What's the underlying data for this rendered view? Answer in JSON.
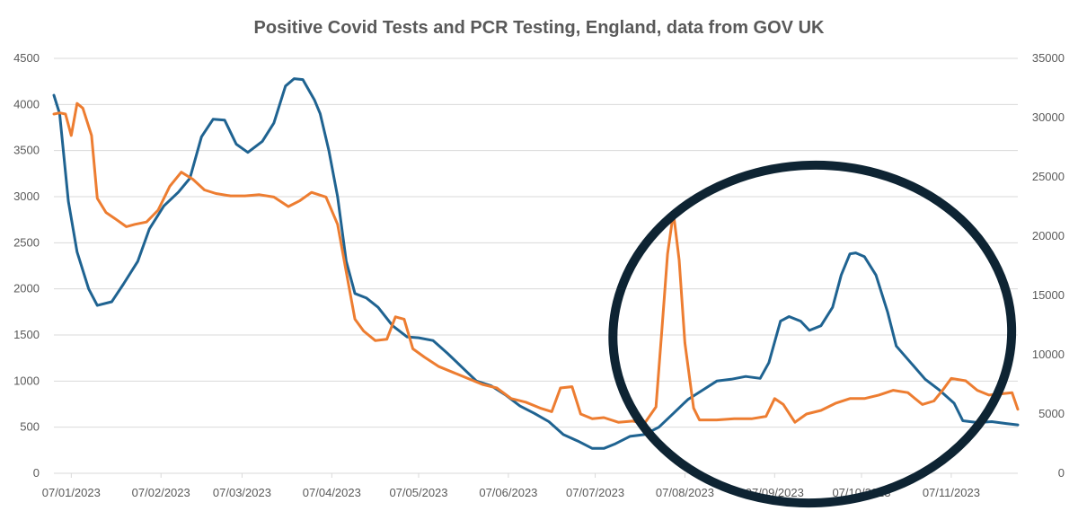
{
  "chart_data": {
    "type": "line",
    "title": "Positive Covid Tests and PCR Testing, England, data from GOV UK",
    "xlabel": "",
    "ylabel": "",
    "x_tick_labels": [
      "07/01/2023",
      "07/02/2023",
      "07/03/2023",
      "07/04/2023",
      "07/05/2023",
      "07/06/2023",
      "07/07/2023",
      "07/08/2023",
      "07/09/2023",
      "07/10/2023",
      "07/11/2023"
    ],
    "y_left": {
      "min": 0,
      "max": 4500,
      "ticks": [
        0,
        500,
        1000,
        1500,
        2000,
        2500,
        3000,
        3500,
        4000,
        4500
      ]
    },
    "y_right": {
      "min": 0,
      "max": 35000,
      "ticks": [
        0,
        5000,
        10000,
        15000,
        20000,
        25000,
        30000,
        35000
      ]
    },
    "grid": true,
    "legend": "none",
    "colors": {
      "positive_tests": "#1f6391",
      "pcr_tests": "#ed7d31",
      "annotation_circle": "#0e2433",
      "grid": "#d9d9d9",
      "text": "#595959"
    },
    "series": [
      {
        "axis": "left",
        "color": "#1f6391",
        "points": [
          [
            "2023-01-01",
            4100
          ],
          [
            "2023-01-03",
            3900
          ],
          [
            "2023-01-06",
            2950
          ],
          [
            "2023-01-09",
            2400
          ],
          [
            "2023-01-13",
            2000
          ],
          [
            "2023-01-16",
            1820
          ],
          [
            "2023-01-21",
            1860
          ],
          [
            "2023-01-25",
            2050
          ],
          [
            "2023-01-30",
            2300
          ],
          [
            "2023-02-03",
            2650
          ],
          [
            "2023-02-08",
            2900
          ],
          [
            "2023-02-13",
            3050
          ],
          [
            "2023-02-17",
            3200
          ],
          [
            "2023-02-21",
            3650
          ],
          [
            "2023-02-25",
            3840
          ],
          [
            "2023-03-01",
            3830
          ],
          [
            "2023-03-05",
            3570
          ],
          [
            "2023-03-09",
            3480
          ],
          [
            "2023-03-14",
            3600
          ],
          [
            "2023-03-18",
            3800
          ],
          [
            "2023-03-22",
            4200
          ],
          [
            "2023-03-25",
            4280
          ],
          [
            "2023-03-28",
            4270
          ],
          [
            "2023-04-01",
            4050
          ],
          [
            "2023-04-03",
            3900
          ],
          [
            "2023-04-06",
            3500
          ],
          [
            "2023-04-09",
            3000
          ],
          [
            "2023-04-12",
            2300
          ],
          [
            "2023-04-15",
            1950
          ],
          [
            "2023-04-19",
            1900
          ],
          [
            "2023-04-23",
            1800
          ],
          [
            "2023-04-28",
            1600
          ],
          [
            "2023-05-03",
            1480
          ],
          [
            "2023-05-07",
            1470
          ],
          [
            "2023-05-12",
            1440
          ],
          [
            "2023-05-17",
            1300
          ],
          [
            "2023-05-22",
            1150
          ],
          [
            "2023-05-27",
            1000
          ],
          [
            "2023-06-01",
            950
          ],
          [
            "2023-06-06",
            850
          ],
          [
            "2023-06-11",
            730
          ],
          [
            "2023-06-16",
            650
          ],
          [
            "2023-06-21",
            560
          ],
          [
            "2023-06-26",
            420
          ],
          [
            "2023-07-01",
            350
          ],
          [
            "2023-07-06",
            270
          ],
          [
            "2023-07-10",
            270
          ],
          [
            "2023-07-14",
            320
          ],
          [
            "2023-07-19",
            400
          ],
          [
            "2023-07-24",
            420
          ],
          [
            "2023-07-29",
            500
          ],
          [
            "2023-08-03",
            650
          ],
          [
            "2023-08-08",
            800
          ],
          [
            "2023-08-13",
            900
          ],
          [
            "2023-08-18",
            1000
          ],
          [
            "2023-08-23",
            1020
          ],
          [
            "2023-08-28",
            1050
          ],
          [
            "2023-09-02",
            1030
          ],
          [
            "2023-09-05",
            1200
          ],
          [
            "2023-09-09",
            1650
          ],
          [
            "2023-09-12",
            1700
          ],
          [
            "2023-09-16",
            1650
          ],
          [
            "2023-09-19",
            1550
          ],
          [
            "2023-09-23",
            1600
          ],
          [
            "2023-09-27",
            1800
          ],
          [
            "2023-09-30",
            2150
          ],
          [
            "2023-10-03",
            2380
          ],
          [
            "2023-10-05",
            2390
          ],
          [
            "2023-10-08",
            2350
          ],
          [
            "2023-10-12",
            2150
          ],
          [
            "2023-10-16",
            1750
          ],
          [
            "2023-10-19",
            1380
          ],
          [
            "2023-10-24",
            1200
          ],
          [
            "2023-10-29",
            1020
          ],
          [
            "2023-11-03",
            900
          ],
          [
            "2023-11-08",
            760
          ],
          [
            "2023-11-11",
            570
          ],
          [
            "2023-11-16",
            550
          ],
          [
            "2023-11-21",
            560
          ],
          [
            "2023-11-26",
            540
          ],
          [
            "2023-11-30",
            525
          ]
        ]
      },
      {
        "axis": "right",
        "color": "#ed7d31",
        "points": [
          [
            "2023-01-01",
            30300
          ],
          [
            "2023-01-03",
            30400
          ],
          [
            "2023-01-05",
            30300
          ],
          [
            "2023-01-07",
            28500
          ],
          [
            "2023-01-09",
            31200
          ],
          [
            "2023-01-11",
            30800
          ],
          [
            "2023-01-14",
            28500
          ],
          [
            "2023-01-16",
            23200
          ],
          [
            "2023-01-19",
            22000
          ],
          [
            "2023-01-22",
            21500
          ],
          [
            "2023-01-26",
            20800
          ],
          [
            "2023-01-29",
            21000
          ],
          [
            "2023-02-02",
            21200
          ],
          [
            "2023-02-06",
            22200
          ],
          [
            "2023-02-10",
            24200
          ],
          [
            "2023-02-14",
            25400
          ],
          [
            "2023-02-18",
            24800
          ],
          [
            "2023-02-22",
            23900
          ],
          [
            "2023-02-26",
            23600
          ],
          [
            "2023-03-03",
            23400
          ],
          [
            "2023-03-08",
            23400
          ],
          [
            "2023-03-13",
            23500
          ],
          [
            "2023-03-18",
            23300
          ],
          [
            "2023-03-23",
            22500
          ],
          [
            "2023-03-27",
            23000
          ],
          [
            "2023-03-31",
            23700
          ],
          [
            "2023-04-05",
            23300
          ],
          [
            "2023-04-09",
            21000
          ],
          [
            "2023-04-12",
            17000
          ],
          [
            "2023-04-15",
            13000
          ],
          [
            "2023-04-18",
            12000
          ],
          [
            "2023-04-22",
            11200
          ],
          [
            "2023-04-26",
            11300
          ],
          [
            "2023-04-29",
            13200
          ],
          [
            "2023-05-02",
            13000
          ],
          [
            "2023-05-05",
            10500
          ],
          [
            "2023-05-09",
            9800
          ],
          [
            "2023-05-14",
            9000
          ],
          [
            "2023-05-19",
            8500
          ],
          [
            "2023-05-24",
            8000
          ],
          [
            "2023-05-29",
            7500
          ],
          [
            "2023-06-03",
            7200
          ],
          [
            "2023-06-08",
            6300
          ],
          [
            "2023-06-13",
            6000
          ],
          [
            "2023-06-18",
            5500
          ],
          [
            "2023-06-22",
            5200
          ],
          [
            "2023-06-25",
            7200
          ],
          [
            "2023-06-29",
            7300
          ],
          [
            "2023-07-02",
            5000
          ],
          [
            "2023-07-06",
            4600
          ],
          [
            "2023-07-10",
            4700
          ],
          [
            "2023-07-15",
            4300
          ],
          [
            "2023-07-20",
            4400
          ],
          [
            "2023-07-24",
            4200
          ],
          [
            "2023-07-28",
            5600
          ],
          [
            "2023-07-30",
            12000
          ],
          [
            "2023-08-01",
            18500
          ],
          [
            "2023-08-03",
            22000
          ],
          [
            "2023-08-05",
            18000
          ],
          [
            "2023-08-07",
            11000
          ],
          [
            "2023-08-10",
            5500
          ],
          [
            "2023-08-12",
            4500
          ],
          [
            "2023-08-18",
            4500
          ],
          [
            "2023-08-24",
            4600
          ],
          [
            "2023-08-30",
            4600
          ],
          [
            "2023-09-04",
            4800
          ],
          [
            "2023-09-07",
            6300
          ],
          [
            "2023-09-10",
            5800
          ],
          [
            "2023-09-14",
            4300
          ],
          [
            "2023-09-18",
            5000
          ],
          [
            "2023-09-23",
            5300
          ],
          [
            "2023-09-28",
            5900
          ],
          [
            "2023-10-03",
            6300
          ],
          [
            "2023-10-08",
            6300
          ],
          [
            "2023-10-13",
            6600
          ],
          [
            "2023-10-18",
            7000
          ],
          [
            "2023-10-23",
            6800
          ],
          [
            "2023-10-28",
            5800
          ],
          [
            "2023-11-01",
            6100
          ],
          [
            "2023-11-04",
            7000
          ],
          [
            "2023-11-07",
            8000
          ],
          [
            "2023-11-12",
            7800
          ],
          [
            "2023-11-16",
            7000
          ],
          [
            "2023-11-20",
            6600
          ],
          [
            "2023-11-24",
            6700
          ],
          [
            "2023-11-28",
            6800
          ],
          [
            "2023-11-30",
            5400
          ]
        ]
      }
    ],
    "annotations": [
      {
        "type": "hand-drawn-ellipse",
        "color": "#0e2433"
      }
    ]
  }
}
